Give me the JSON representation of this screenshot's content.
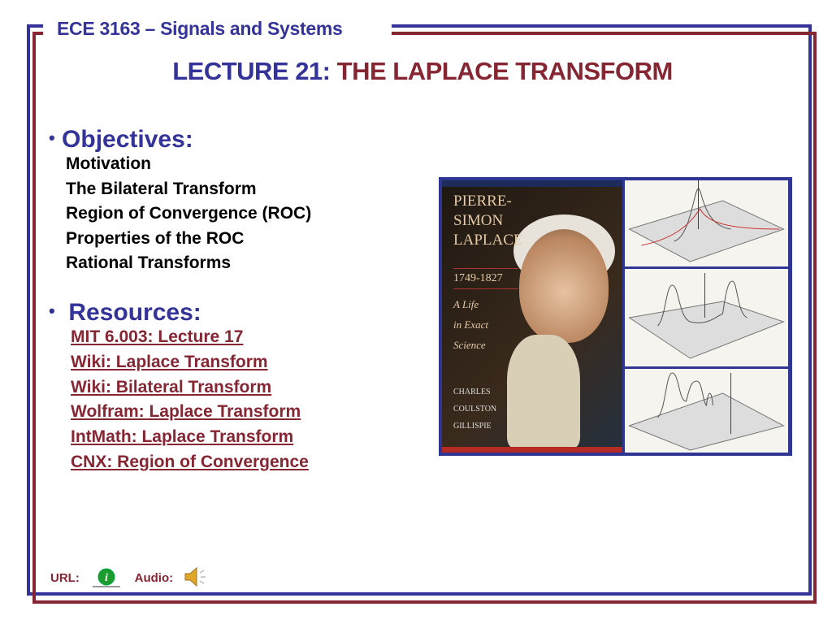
{
  "header": {
    "course": "ECE 3163 – Signals and Systems"
  },
  "title": {
    "prefix": "LECTURE 21:",
    "main": "THE LAPLACE TRANSFORM"
  },
  "objectives": {
    "heading": "Objectives:",
    "bullet": "•",
    "items": [
      "Motivation",
      "The Bilateral Transform",
      "Region of Convergence (ROC)",
      "Properties of the ROC",
      "Rational Transforms"
    ]
  },
  "resources": {
    "heading": "Resources:",
    "bullet": "•",
    "links": [
      "MIT 6.003: Lecture 17",
      "Wiki: Laplace Transform",
      "Wiki: Bilateral Transform",
      "Wolfram: Laplace Transform",
      "IntMath: Laplace Transform",
      "CNX: Region of Convergence"
    ]
  },
  "book_cover": {
    "title_lines": [
      "PIERRE-",
      "SIMON",
      "LAPLACE"
    ],
    "years": "1749-1827",
    "subtitle_lines": [
      "A Life",
      "in Exact",
      "Science"
    ],
    "author_lines": [
      "CHARLES",
      "COULSTON",
      "GILLISPIE"
    ]
  },
  "footer": {
    "url_label": "URL:",
    "audio_label": "Audio:"
  },
  "colors": {
    "blue": "#333399",
    "maroon": "#862633"
  },
  "icons": {
    "url": "info-icon",
    "audio": "speaker-icon"
  }
}
